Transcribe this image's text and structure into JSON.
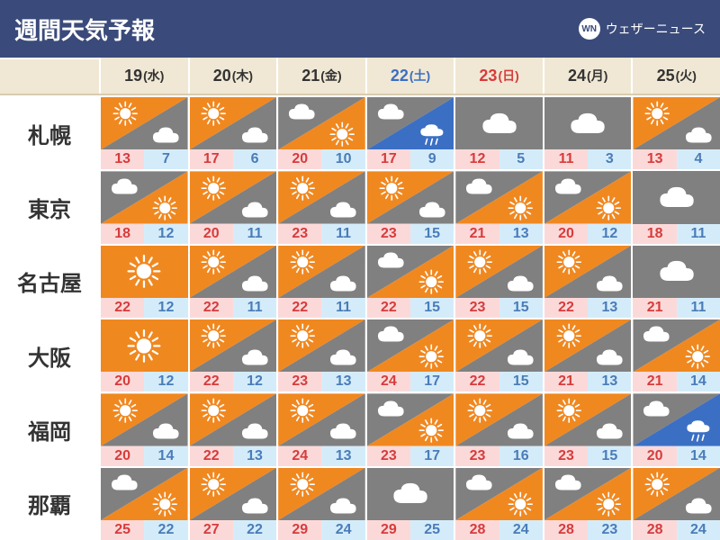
{
  "title": "週間天気予報",
  "logo_text": "ウェザーニュース",
  "logo_badge": "WN",
  "colors": {
    "header_bg": "#3a4a7a",
    "head_row_bg": "#f0e8d4",
    "sun_bg": "#f08820",
    "cloud_bg": "#808080",
    "rain_bg": "#3b6fc4",
    "hi_bg": "#fcd9d9",
    "lo_bg": "#d4ecfa",
    "hi_text": "#d63c3c",
    "lo_text": "#4a7cb8",
    "sat_text": "#3b6fc4",
    "sun_text": "#d63c3c",
    "day_text": "#333333"
  },
  "days": [
    {
      "num": "19",
      "dow": "(水)",
      "color": "#333333"
    },
    {
      "num": "20",
      "dow": "(木)",
      "color": "#333333"
    },
    {
      "num": "21",
      "dow": "(金)",
      "color": "#333333"
    },
    {
      "num": "22",
      "dow": "(土)",
      "color": "#3b6fc4"
    },
    {
      "num": "23",
      "dow": "(日)",
      "color": "#d63c3c"
    },
    {
      "num": "24",
      "dow": "(月)",
      "color": "#333333"
    },
    {
      "num": "25",
      "dow": "(火)",
      "color": "#333333"
    }
  ],
  "cities": [
    {
      "name": "札幌",
      "cells": [
        {
          "w": "sun_cloud",
          "hi": 13,
          "lo": 7
        },
        {
          "w": "sun_cloud",
          "hi": 17,
          "lo": 6
        },
        {
          "w": "cloud_sun",
          "hi": 20,
          "lo": 10
        },
        {
          "w": "cloud_rain",
          "hi": 17,
          "lo": 9
        },
        {
          "w": "cloud",
          "hi": 12,
          "lo": 5
        },
        {
          "w": "cloud",
          "hi": 11,
          "lo": 3
        },
        {
          "w": "sun_cloud",
          "hi": 13,
          "lo": 4
        }
      ]
    },
    {
      "name": "東京",
      "cells": [
        {
          "w": "cloud_sun",
          "hi": 18,
          "lo": 12
        },
        {
          "w": "sun_cloud",
          "hi": 20,
          "lo": 11
        },
        {
          "w": "sun_cloud",
          "hi": 23,
          "lo": 11
        },
        {
          "w": "sun_cloud",
          "hi": 23,
          "lo": 15
        },
        {
          "w": "cloud_sun",
          "hi": 21,
          "lo": 13
        },
        {
          "w": "cloud_sun",
          "hi": 20,
          "lo": 12
        },
        {
          "w": "cloud",
          "hi": 18,
          "lo": 11
        }
      ]
    },
    {
      "name": "名古屋",
      "cells": [
        {
          "w": "sun",
          "hi": 22,
          "lo": 12
        },
        {
          "w": "sun_cloud",
          "hi": 22,
          "lo": 11
        },
        {
          "w": "sun_cloud",
          "hi": 22,
          "lo": 11
        },
        {
          "w": "cloud_sun",
          "hi": 22,
          "lo": 15
        },
        {
          "w": "sun_cloud",
          "hi": 23,
          "lo": 15
        },
        {
          "w": "sun_cloud",
          "hi": 22,
          "lo": 13
        },
        {
          "w": "cloud",
          "hi": 21,
          "lo": 11
        }
      ]
    },
    {
      "name": "大阪",
      "cells": [
        {
          "w": "sun",
          "hi": 20,
          "lo": 12
        },
        {
          "w": "sun_cloud",
          "hi": 22,
          "lo": 12
        },
        {
          "w": "sun_cloud",
          "hi": 23,
          "lo": 13
        },
        {
          "w": "cloud_sun",
          "hi": 24,
          "lo": 17
        },
        {
          "w": "sun_cloud",
          "hi": 22,
          "lo": 15
        },
        {
          "w": "sun_cloud",
          "hi": 21,
          "lo": 13
        },
        {
          "w": "cloud_sun",
          "hi": 21,
          "lo": 14
        }
      ]
    },
    {
      "name": "福岡",
      "cells": [
        {
          "w": "sun_cloud",
          "hi": 20,
          "lo": 14
        },
        {
          "w": "sun_cloud",
          "hi": 22,
          "lo": 13
        },
        {
          "w": "sun_cloud",
          "hi": 24,
          "lo": 13
        },
        {
          "w": "cloud_sun",
          "hi": 23,
          "lo": 17
        },
        {
          "w": "sun_cloud",
          "hi": 23,
          "lo": 16
        },
        {
          "w": "sun_cloud",
          "hi": 23,
          "lo": 15
        },
        {
          "w": "cloud_rain",
          "hi": 20,
          "lo": 14
        }
      ]
    },
    {
      "name": "那覇",
      "cells": [
        {
          "w": "cloud_sun",
          "hi": 25,
          "lo": 22
        },
        {
          "w": "sun_cloud",
          "hi": 27,
          "lo": 22
        },
        {
          "w": "sun_cloud",
          "hi": 29,
          "lo": 24
        },
        {
          "w": "cloud",
          "hi": 29,
          "lo": 25
        },
        {
          "w": "cloud_sun",
          "hi": 28,
          "lo": 24
        },
        {
          "w": "cloud_sun",
          "hi": 28,
          "lo": 23
        },
        {
          "w": "sun_cloud",
          "hi": 28,
          "lo": 24
        }
      ]
    }
  ]
}
